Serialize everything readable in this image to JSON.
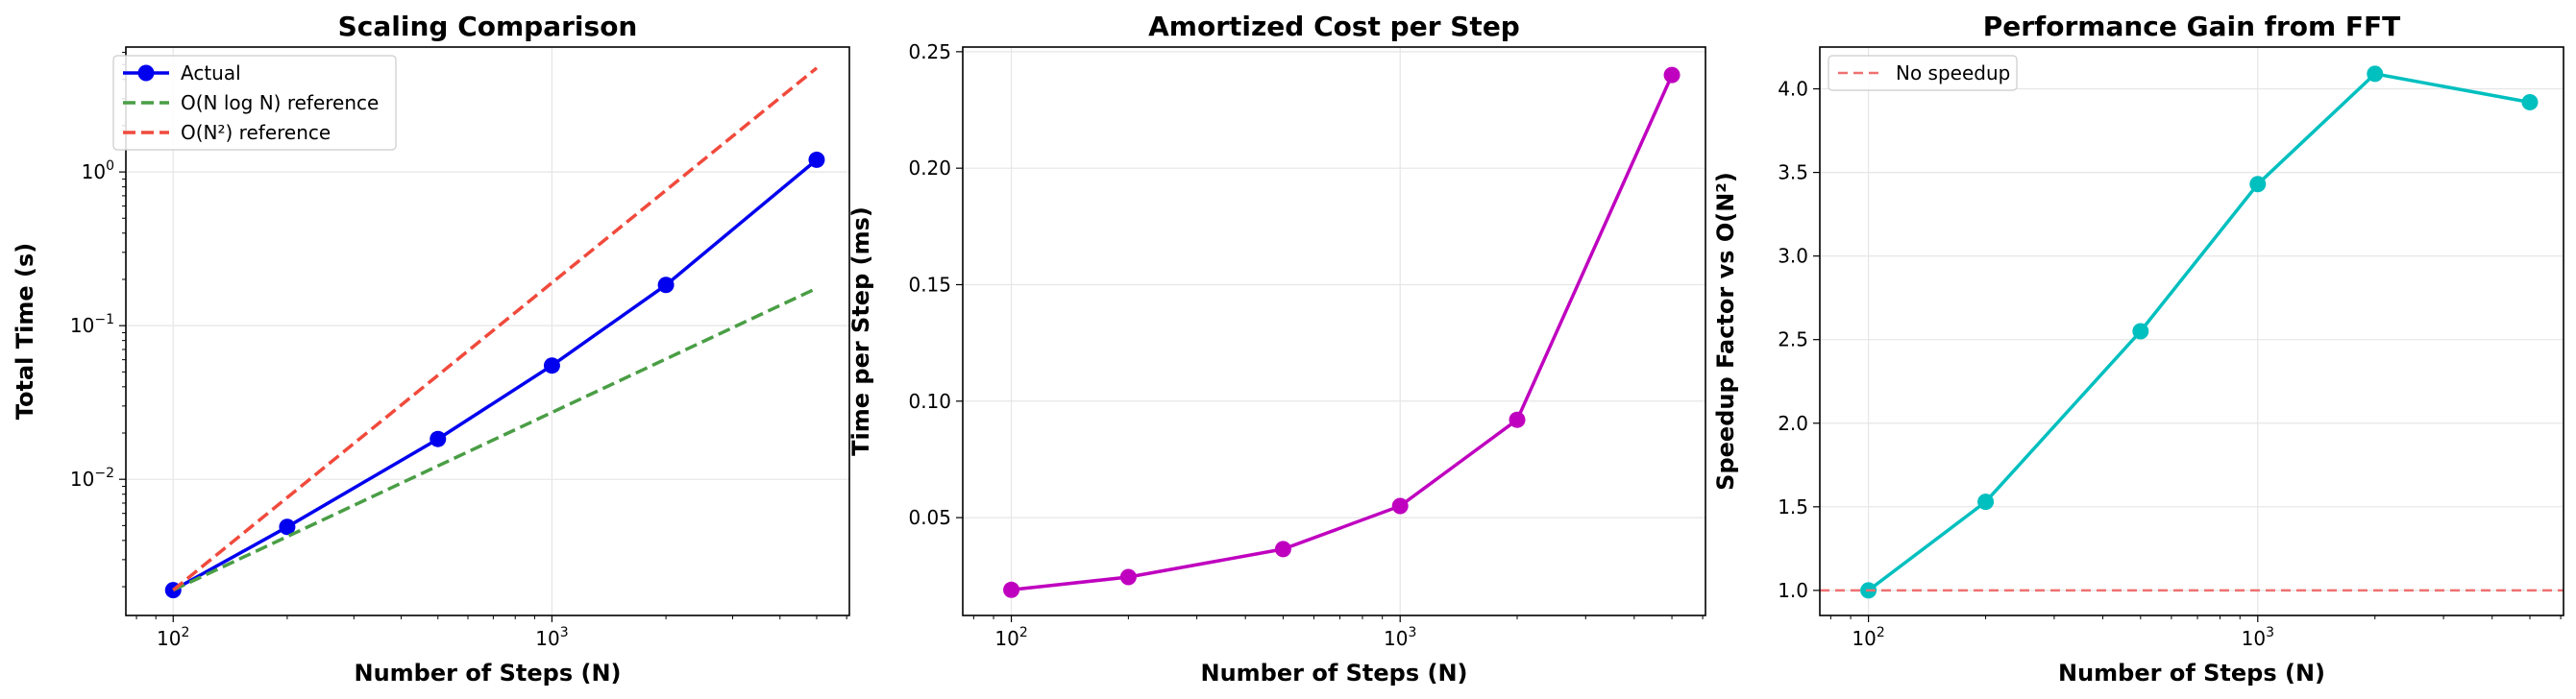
{
  "chart_data": [
    {
      "type": "line",
      "title": "Scaling Comparison",
      "xlabel": "Number of Steps (N)",
      "ylabel": "Total Time (s)",
      "xscale": "log",
      "yscale": "log",
      "xlim": [
        75,
        6100
      ],
      "ylim": [
        0.0013,
        6.5
      ],
      "xticks": [
        100,
        1000
      ],
      "xtick_labels": [
        {
          "base": "10",
          "exp": "2"
        },
        {
          "base": "10",
          "exp": "3"
        }
      ],
      "yticks": [
        0.01,
        0.1,
        1
      ],
      "ytick_labels": [
        {
          "base": "10",
          "exp": "−2"
        },
        {
          "base": "10",
          "exp": "−1"
        },
        {
          "base": "10",
          "exp": "0"
        }
      ],
      "grid": true,
      "legend": "top-left",
      "series": [
        {
          "name": "Actual",
          "style": "solid-marker",
          "color": "#0000ee",
          "x": [
            100,
            200,
            500,
            1000,
            2000,
            5000
          ],
          "y": [
            0.0019,
            0.0049,
            0.0183,
            0.055,
            0.184,
            1.2
          ]
        },
        {
          "name": "O(N log N) reference",
          "style": "dashed",
          "color": "#4a9e45",
          "x": [
            100,
            5000
          ],
          "y": [
            0.0019,
            0.175
          ]
        },
        {
          "name": "O(N²) reference",
          "style": "dashed",
          "color": "#f04a3c",
          "x": [
            100,
            5000
          ],
          "y": [
            0.0019,
            4.75
          ]
        }
      ]
    },
    {
      "type": "line",
      "title": "Amortized Cost per Step",
      "xlabel": "Number of Steps (N)",
      "ylabel": "Time per Step (ms)",
      "xscale": "log",
      "yscale": "linear",
      "xlim": [
        75,
        6100
      ],
      "ylim": [
        0.008,
        0.252
      ],
      "xticks": [
        100,
        1000
      ],
      "xtick_labels": [
        {
          "base": "10",
          "exp": "2"
        },
        {
          "base": "10",
          "exp": "3"
        }
      ],
      "yticks": [
        0.05,
        0.1,
        0.15,
        0.2,
        0.25
      ],
      "ytick_labels": [
        "0.05",
        "0.10",
        "0.15",
        "0.20",
        "0.25"
      ],
      "grid": true,
      "series": [
        {
          "style": "solid-marker",
          "color": "#bf00bf",
          "x": [
            100,
            200,
            500,
            1000,
            2000,
            5000
          ],
          "y": [
            0.019,
            0.0245,
            0.0365,
            0.055,
            0.092,
            0.24
          ]
        }
      ]
    },
    {
      "type": "line",
      "title": "Performance Gain from FFT",
      "xlabel": "Number of Steps (N)",
      "ylabel": "Speedup Factor vs O(N²)",
      "xscale": "log",
      "yscale": "linear",
      "xlim": [
        75,
        6100
      ],
      "ylim": [
        0.85,
        4.25
      ],
      "xticks": [
        100,
        1000
      ],
      "xtick_labels": [
        {
          "base": "10",
          "exp": "2"
        },
        {
          "base": "10",
          "exp": "3"
        }
      ],
      "yticks": [
        1.0,
        1.5,
        2.0,
        2.5,
        3.0,
        3.5,
        4.0
      ],
      "ytick_labels": [
        "1.0",
        "1.5",
        "2.0",
        "2.5",
        "3.0",
        "3.5",
        "4.0"
      ],
      "grid": true,
      "legend": "top-left",
      "series": [
        {
          "style": "solid-marker",
          "color": "#00bfbf",
          "x": [
            100,
            200,
            500,
            1000,
            2000,
            5000
          ],
          "y": [
            1.0,
            1.53,
            2.55,
            3.43,
            4.09,
            3.92
          ]
        },
        {
          "name": "No speedup",
          "style": "hline-dashed",
          "color": "#f07070",
          "y": 1.0
        }
      ]
    }
  ]
}
